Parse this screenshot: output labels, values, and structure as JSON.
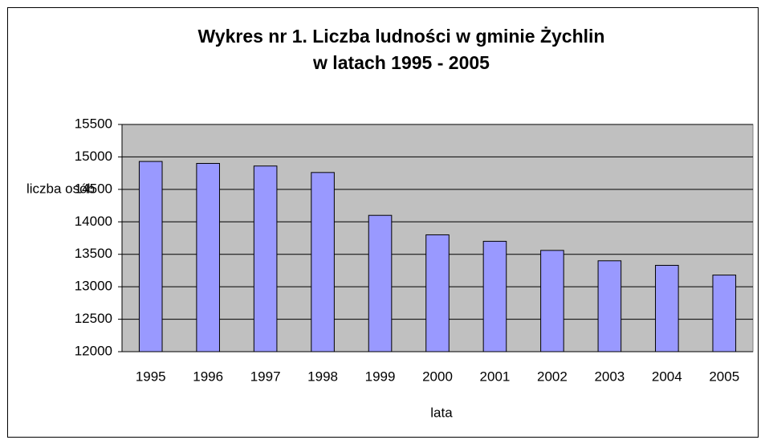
{
  "chart_data": {
    "type": "bar",
    "title": [
      "Wykres nr 1. Liczba ludności w gminie Żychlin",
      "w latach 1995 - 2005"
    ],
    "y_label": "liczba osób",
    "x_label": "lata",
    "categories": [
      "1995",
      "1996",
      "1997",
      "1998",
      "1999",
      "2000",
      "2001",
      "2002",
      "2003",
      "2004",
      "2005"
    ],
    "values": [
      14930,
      14900,
      14860,
      14760,
      14100,
      13800,
      13700,
      13560,
      13400,
      13330,
      13180
    ],
    "color": "#9999ff",
    "plot_background": "#c0c0c0",
    "ylim": [
      12000,
      15500
    ],
    "yticks": [
      12000,
      12500,
      13000,
      13500,
      14000,
      14500,
      15000,
      15500
    ],
    "grid": true
  }
}
